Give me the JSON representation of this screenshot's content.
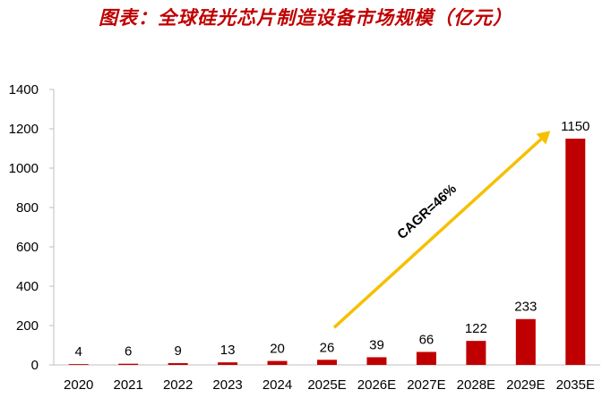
{
  "title": "图表：全球硅光芯片制造设备市场规模（亿元）",
  "chart_data": {
    "type": "bar",
    "title": "图表：全球硅光芯片制造设备市场规模（亿元）",
    "xlabel": "",
    "ylabel": "",
    "categories": [
      "2020",
      "2021",
      "2022",
      "2023",
      "2024",
      "2025E",
      "2026E",
      "2027E",
      "2028E",
      "2029E",
      "2035E"
    ],
    "values": [
      4,
      6,
      9,
      13,
      20,
      26,
      39,
      66,
      122,
      233,
      1150
    ],
    "data_labels": [
      "4",
      "6",
      "9",
      "13",
      "20",
      "26",
      "39",
      "66",
      "122",
      "233",
      "1150"
    ],
    "ylim": [
      0,
      1400
    ],
    "yticks": [
      0,
      200,
      400,
      600,
      800,
      1000,
      1200,
      1400
    ],
    "ytick_labels": [
      "0",
      "200",
      "400",
      "600",
      "800",
      "1000",
      "1200",
      "1400"
    ],
    "grid": false,
    "legend": "none",
    "bar_color": "#c00000",
    "annotation": {
      "text": "CAGR=46%",
      "arrow_color": "#f5c000",
      "from": {
        "category": "2025E",
        "value": 190
      },
      "to": {
        "category": "2035E",
        "value": 1190
      }
    }
  }
}
